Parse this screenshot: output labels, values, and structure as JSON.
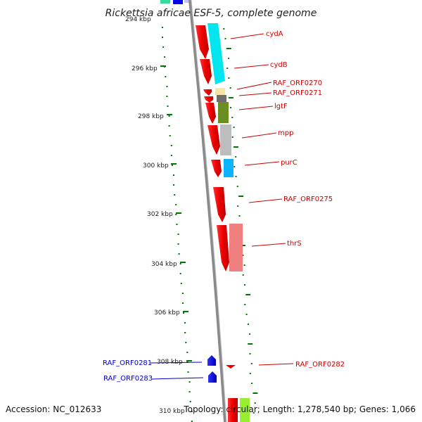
{
  "title": "Rickettsia africae ESF-5, complete genome",
  "accession": "Accession: NC_012633",
  "topology": "Topology: circular; Length: 1,278,540 bp; Genes: 1,066",
  "top_partial_label": "294 kbp",
  "ticks": [
    "296 kbp",
    "298 kbp",
    "300 kbp",
    "302 kbp",
    "304 kbp",
    "306 kbp",
    "308 kbp",
    "310 kbp"
  ],
  "genes_right": [
    {
      "label": "cydA",
      "color": "#cc0000"
    },
    {
      "label": "cydB",
      "color": "#cc0000"
    },
    {
      "label": "RAF_ORF0270",
      "color": "#cc0000"
    },
    {
      "label": "RAF_ORF0271",
      "color": "#cc0000"
    },
    {
      "label": "lgtF",
      "color": "#cc0000"
    },
    {
      "label": "mpp",
      "color": "#cc0000"
    },
    {
      "label": "purC",
      "color": "#cc0000"
    },
    {
      "label": "RAF_ORF0275",
      "color": "#cc0000"
    },
    {
      "label": "thrS",
      "color": "#cc0000"
    },
    {
      "label": "RAF_ORF0282",
      "color": "#cc0000"
    }
  ],
  "genes_left": [
    {
      "label": "RAF_ORF0281",
      "color": "#0000cc"
    },
    {
      "label": "RAF_ORF0283",
      "color": "#0000cc"
    }
  ],
  "colors": {
    "forward_gene": "#ff0000",
    "reverse_gene": "#0000ff",
    "backbone": "#8a8a8a",
    "gc_dots": "#007700",
    "cog_cyan": "#00e5ee",
    "cog_cream": "#f5e6a8",
    "cog_dkgray": "#6e6e6e",
    "cog_olive": "#6b8e23",
    "cog_silver": "#bdbdbd",
    "cog_blue": "#0ab4ff",
    "cog_salmon": "#f08080"
  }
}
